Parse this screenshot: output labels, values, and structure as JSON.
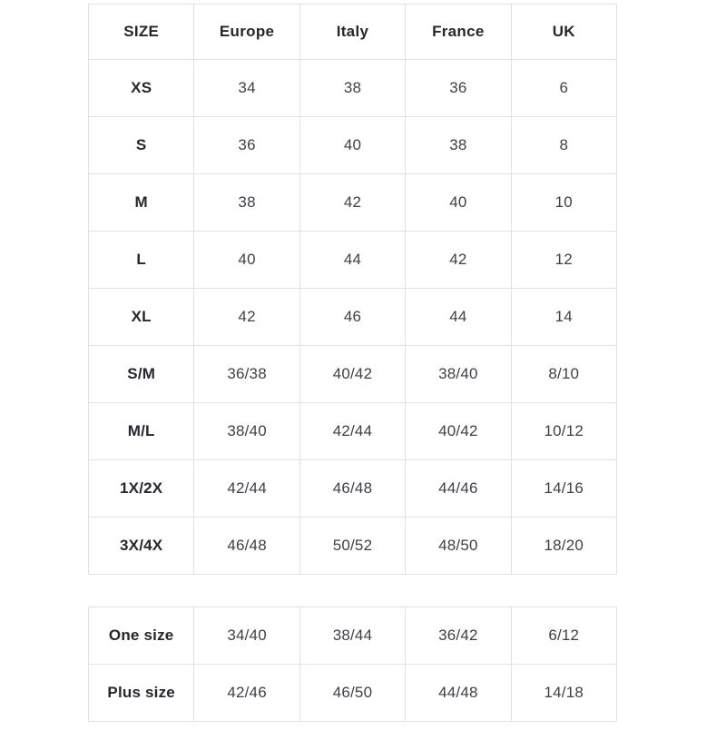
{
  "theme": {
    "background": "#ffffff",
    "border_color": "#e2e2e2",
    "label_text_color": "#26262e",
    "value_text_color": "#3f3f48"
  },
  "size_chart": {
    "columns": [
      "SIZE",
      "Europe",
      "Italy",
      "France",
      "UK"
    ],
    "rows": [
      {
        "size": "XS",
        "values": [
          "34",
          "38",
          "36",
          "6"
        ]
      },
      {
        "size": "S",
        "values": [
          "36",
          "40",
          "38",
          "8"
        ]
      },
      {
        "size": "M",
        "values": [
          "38",
          "42",
          "40",
          "10"
        ]
      },
      {
        "size": "L",
        "values": [
          "40",
          "44",
          "42",
          "12"
        ]
      },
      {
        "size": "XL",
        "values": [
          "42",
          "46",
          "44",
          "14"
        ]
      },
      {
        "size": "S/M",
        "values": [
          "36/38",
          "40/42",
          "38/40",
          "8/10"
        ]
      },
      {
        "size": "M/L",
        "values": [
          "38/40",
          "42/44",
          "40/42",
          "10/12"
        ]
      },
      {
        "size": "1X/2X",
        "values": [
          "42/44",
          "46/48",
          "44/46",
          "14/16"
        ]
      },
      {
        "size": "3X/4X",
        "values": [
          "46/48",
          "50/52",
          "48/50",
          "18/20"
        ]
      }
    ]
  },
  "special_sizes": {
    "rows": [
      {
        "size": "One size",
        "values": [
          "34/40",
          "38/44",
          "36/42",
          "6/12"
        ]
      },
      {
        "size": "Plus size",
        "values": [
          "42/46",
          "46/50",
          "44/48",
          "14/18"
        ]
      }
    ]
  }
}
